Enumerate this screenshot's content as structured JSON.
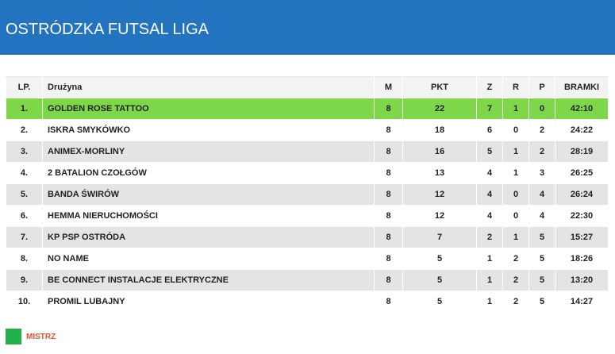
{
  "header": {
    "title": "OSTRÓDZKA FUTSAL LIGA"
  },
  "colors": {
    "header_bg": "#2273c0",
    "champion_row": "#7ed649",
    "legend_swatch": "#22b04b",
    "legend_text": "#e1542a"
  },
  "table": {
    "columns": [
      "LP.",
      "Drużyna",
      "M",
      "PKT",
      "Z",
      "R",
      "P",
      "BRAMKI"
    ],
    "rows": [
      {
        "lp": "1.",
        "team": "GOLDEN ROSE TATTOO",
        "m": "8",
        "pkt": "22",
        "z": "7",
        "r": "1",
        "p": "0",
        "bramki": "42:10"
      },
      {
        "lp": "2.",
        "team": "ISKRA SMYKÓWKO",
        "m": "8",
        "pkt": "18",
        "z": "6",
        "r": "0",
        "p": "2",
        "bramki": "24:22"
      },
      {
        "lp": "3.",
        "team": "ANIMEX-MORLINY",
        "m": "8",
        "pkt": "16",
        "z": "5",
        "r": "1",
        "p": "2",
        "bramki": "28:19"
      },
      {
        "lp": "4.",
        "team": "2 BATALION CZOŁGÓW",
        "m": "8",
        "pkt": "13",
        "z": "4",
        "r": "1",
        "p": "3",
        "bramki": "26:25"
      },
      {
        "lp": "5.",
        "team": "BANDA ŚWIRÓW",
        "m": "8",
        "pkt": "12",
        "z": "4",
        "r": "0",
        "p": "4",
        "bramki": "26:24"
      },
      {
        "lp": "6.",
        "team": "HEMMA NIERUCHOMOŚCI",
        "m": "8",
        "pkt": "12",
        "z": "4",
        "r": "0",
        "p": "4",
        "bramki": "22:30"
      },
      {
        "lp": "7.",
        "team": "KP PSP OSTRÓDA",
        "m": "8",
        "pkt": "7",
        "z": "2",
        "r": "1",
        "p": "5",
        "bramki": "15:27"
      },
      {
        "lp": "8.",
        "team": "NO NAME",
        "m": "8",
        "pkt": "5",
        "z": "1",
        "r": "2",
        "p": "5",
        "bramki": "18:26"
      },
      {
        "lp": "9.",
        "team": "BE CONNECT INSTALACJE ELEKTRYCZNE",
        "m": "8",
        "pkt": "5",
        "z": "1",
        "r": "2",
        "p": "5",
        "bramki": "13:20"
      },
      {
        "lp": "10.",
        "team": "PROMIL LUBAJNY",
        "m": "8",
        "pkt": "5",
        "z": "1",
        "r": "2",
        "p": "5",
        "bramki": "14:27"
      }
    ]
  },
  "legend": {
    "label": "MISTRZ"
  }
}
